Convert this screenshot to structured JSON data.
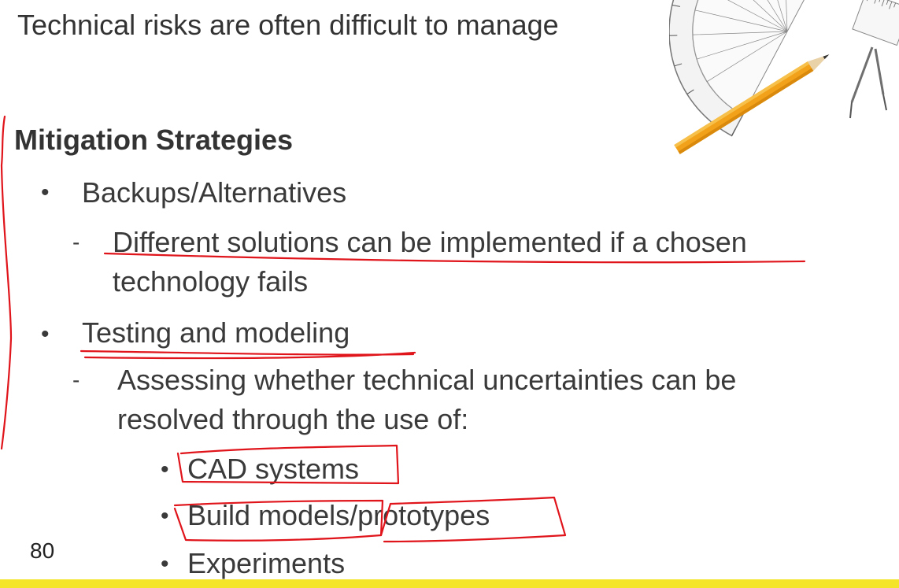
{
  "slide": {
    "intro_text": "Technical risks are often difficult to manage",
    "heading": "Mitigation Strategies",
    "items": [
      {
        "label": "Backups/Alternatives",
        "detail_line1": "Different solutions can be implemented if a chosen",
        "detail_line2": "technology fails"
      },
      {
        "label": "Testing and modeling",
        "detail_line1": "Assessing whether technical uncertainties can be",
        "detail_line2": "resolved through the use of:",
        "subitems": [
          "CAD systems",
          "Build models/prototypes",
          "Experiments"
        ]
      }
    ],
    "bullet_glyph": "•",
    "dash_glyph": "-",
    "page_number": "80",
    "accent_color": "#f5e52a",
    "annotation_color": "#e0141b",
    "illustration": "protractor-pencil-compass-icon"
  }
}
